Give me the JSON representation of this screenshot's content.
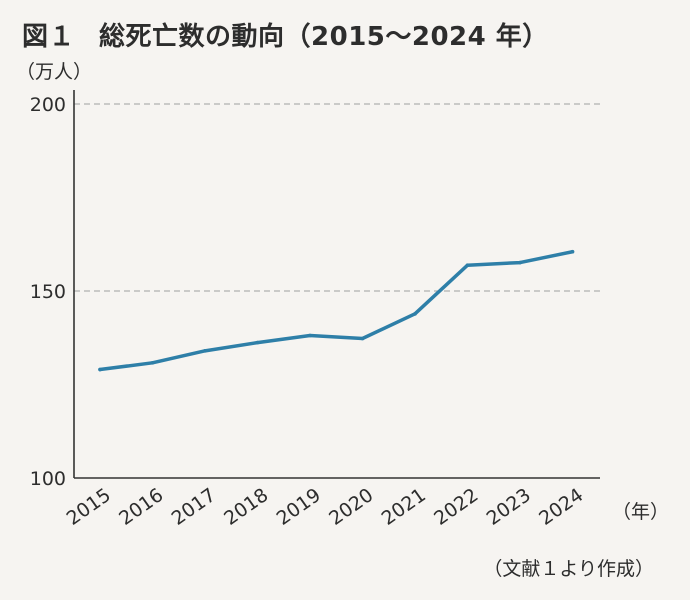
{
  "figure": {
    "number": "図１",
    "title": "総死亡数の動向（2015～2024 年）"
  },
  "source_note": "（文献１より作成）",
  "colors": {
    "line": "#2e7fa8",
    "axis": "#333333",
    "grid": "#b0b0b0"
  },
  "chart_data": {
    "type": "line",
    "title": "総死亡数の動向（2015～2024 年）",
    "ylabel": "（万人）",
    "xlabel": "（年）",
    "ylim": [
      100,
      200
    ],
    "yticks": [
      100,
      150,
      200
    ],
    "ytick_labels": [
      "100",
      "150",
      "200"
    ],
    "grid": "dashed at 150 and 200",
    "x": [
      "2015",
      "2016",
      "2017",
      "2018",
      "2019",
      "2020",
      "2021",
      "2022",
      "2023",
      "2024"
    ],
    "series": [
      {
        "values": [
          129.0,
          130.8,
          134.0,
          136.2,
          138.1,
          137.3,
          143.9,
          156.9,
          157.6,
          160.5
        ]
      }
    ]
  }
}
